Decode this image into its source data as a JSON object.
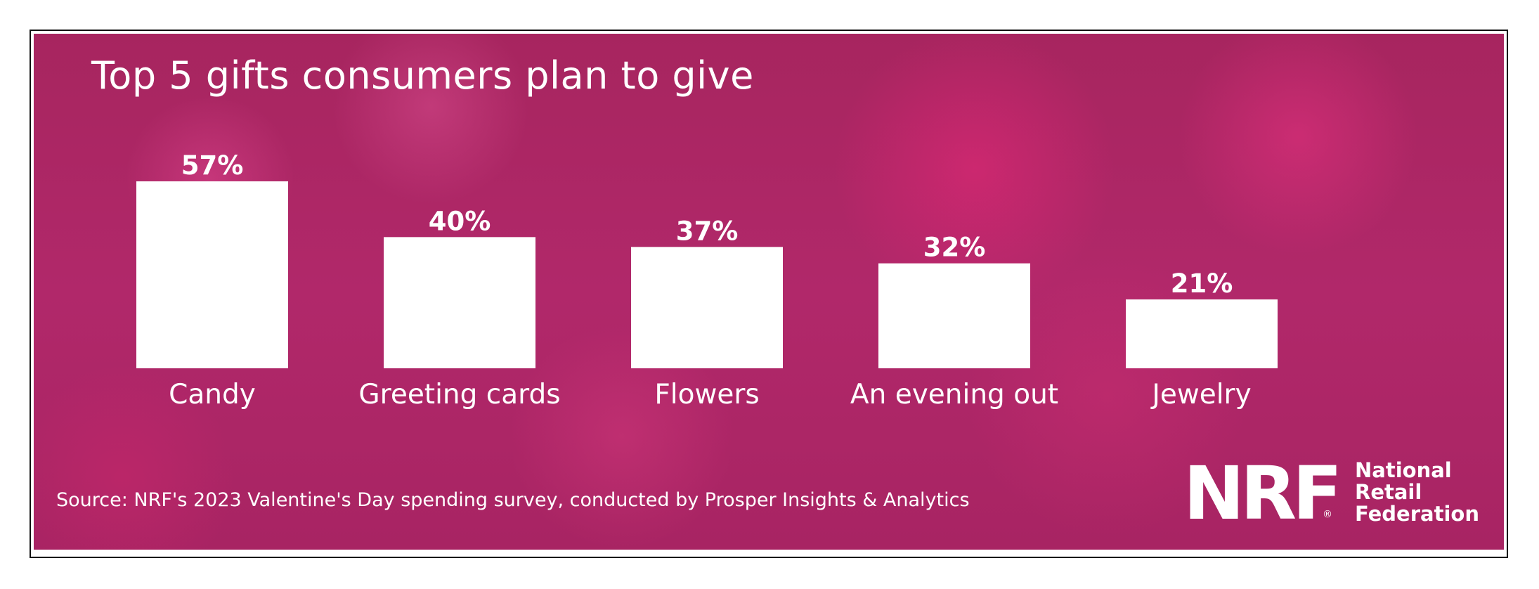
{
  "chart_data": {
    "type": "bar",
    "title": "Top 5 gifts consumers plan to give",
    "categories": [
      "Candy",
      "Greeting cards",
      "Flowers",
      "An evening out",
      "Jewelry"
    ],
    "values": [
      57,
      40,
      37,
      32,
      21
    ],
    "value_labels": [
      "57%",
      "40%",
      "37%",
      "32%",
      "21%"
    ],
    "unit": "%",
    "xlabel": "",
    "ylabel": "",
    "ylim": [
      0,
      57
    ],
    "grid": false,
    "bar_color": "#ffffff",
    "background_color": "#ad2666"
  },
  "source": "Source: NRF's 2023 Valentine's Day spending survey, conducted by Prosper Insights & Analytics",
  "logo": {
    "mark": "NRF",
    "registered": "®",
    "lines": [
      "National",
      "Retail",
      "Federation"
    ]
  }
}
